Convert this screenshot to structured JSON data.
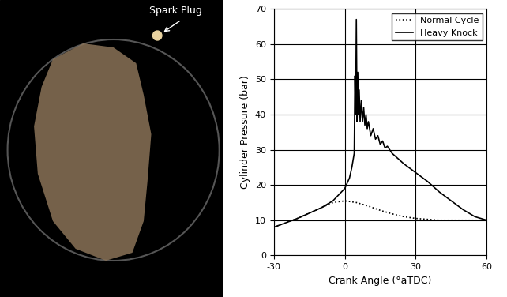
{
  "chart_data": {
    "type": "line",
    "x_label": "Crank Angle (°aTDC)",
    "y_label": "Cylinder Pressure (bar)",
    "xlim": [
      -30,
      60
    ],
    "xticks": [
      -30,
      0,
      30,
      60
    ],
    "ylim": [
      0,
      70
    ],
    "yticks": [
      0,
      10,
      20,
      30,
      40,
      50,
      60,
      70
    ],
    "grid": true,
    "legend": "upper right",
    "series": [
      {
        "name": "Normal Cycle",
        "color": "#000000",
        "line_style": "dotted",
        "x": [
          -30,
          -20,
          -10,
          -5,
          0,
          5,
          10,
          15,
          20,
          25,
          30,
          40,
          50,
          60
        ],
        "values": [
          8,
          10.5,
          13.5,
          15,
          15.5,
          15,
          14,
          12.8,
          11.8,
          11,
          10.5,
          10,
          10,
          10
        ]
      },
      {
        "name": "Heavy Knock",
        "color": "#000000",
        "line_style": "solid",
        "x": [
          -30,
          -20,
          -10,
          -5,
          0,
          2,
          3,
          4,
          4.3,
          4.6,
          4.9,
          5.2,
          5.5,
          5.8,
          6.1,
          6.5,
          7,
          7.5,
          8,
          8.5,
          9,
          9.5,
          10,
          11,
          12,
          13,
          14,
          15,
          16,
          17,
          18,
          20,
          25,
          30,
          35,
          40,
          45,
          50,
          55,
          60
        ],
        "values": [
          8,
          10.5,
          13.5,
          15.5,
          19,
          22,
          25,
          29,
          51,
          40,
          67,
          38,
          52,
          40,
          47,
          38,
          44,
          38,
          42,
          37,
          40,
          36,
          38,
          34,
          36,
          33,
          34,
          31.5,
          32.5,
          30.5,
          31,
          29,
          26,
          23.5,
          21,
          18,
          15.5,
          13,
          11,
          10
        ]
      }
    ]
  },
  "photo": {
    "annotation": "Spark Plug"
  }
}
